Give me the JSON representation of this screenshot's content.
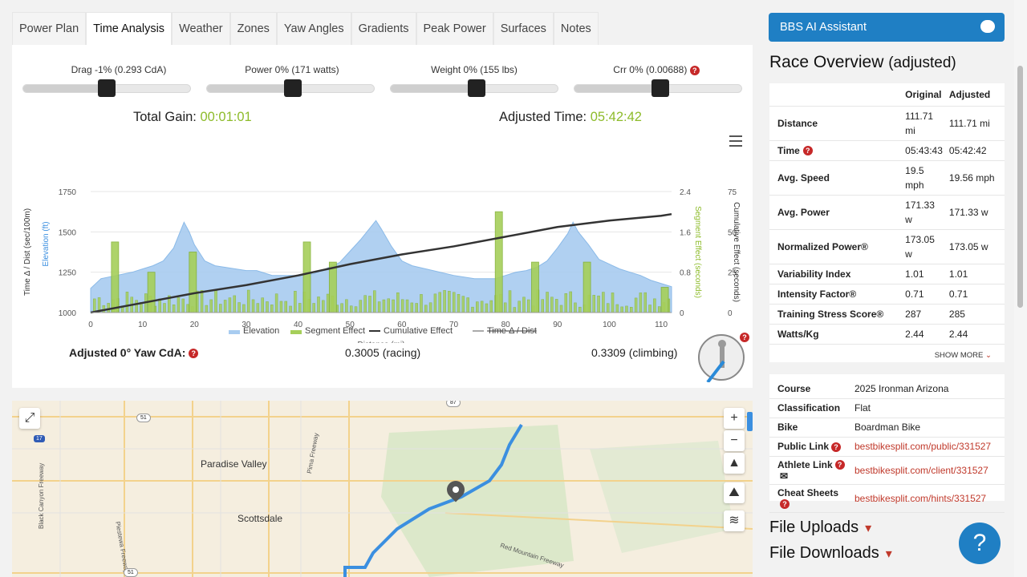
{
  "tabs": [
    "Power Plan",
    "Time Analysis",
    "Weather",
    "Zones",
    "Yaw Angles",
    "Gradients",
    "Peak Power",
    "Surfaces",
    "Notes"
  ],
  "sliders": [
    {
      "label": "Drag -1% (0.293 CdA)",
      "value": 0.5
    },
    {
      "label": "Power 0% (171 watts)",
      "value": 0.5
    },
    {
      "label": "Weight 0% (155 lbs)",
      "value": 0.5
    },
    {
      "label": "Crr 0% (0.00688)",
      "value": 0.5
    }
  ],
  "total_gain": {
    "label": "Total Gain:",
    "value": "00:01:01"
  },
  "adjusted_time": {
    "label": "Adjusted Time:",
    "value": "05:42:42"
  },
  "chart_data": {
    "type": "area",
    "xlabel": "Distance (mi)",
    "ylabel_left_outer": "Time Δ / Dist (sec/100m)",
    "ylabel_left": "Elevation (ft)",
    "ylabel_right1": "Segment Effect (seconds)",
    "ylabel_right2": "Cumulative Effect (seconds)",
    "x_ticks": [
      "0",
      "10",
      "20",
      "30",
      "40",
      "50",
      "60",
      "70",
      "80",
      "90",
      "100",
      "110"
    ],
    "y_left_ticks": [
      "1000",
      "1250",
      "1500",
      "1750"
    ],
    "y_right1_ticks": [
      "0",
      "0.8",
      "1.6",
      "2.4"
    ],
    "y_right2_ticks": [
      "0",
      "25",
      "50",
      "75"
    ],
    "xlim": [
      0,
      112
    ],
    "ylim_left": [
      1000,
      1750
    ],
    "ylim_right1": [
      0,
      2.4
    ],
    "ylim_right2": [
      0,
      75
    ],
    "elevation": {
      "x": [
        0,
        2,
        5,
        8,
        10,
        12,
        14,
        16,
        17,
        18,
        19,
        20,
        22,
        24,
        26,
        28,
        30,
        32,
        35,
        38,
        40,
        43,
        46,
        48,
        50,
        52,
        54,
        55,
        56,
        58,
        60,
        62,
        66,
        70,
        74,
        78,
        80,
        82,
        84,
        86,
        88,
        90,
        92,
        93,
        94,
        96,
        98,
        100,
        102,
        104,
        106,
        108,
        110,
        112
      ],
      "y": [
        1150,
        1210,
        1230,
        1250,
        1270,
        1290,
        1320,
        1400,
        1480,
        1560,
        1500,
        1420,
        1320,
        1290,
        1280,
        1270,
        1260,
        1260,
        1230,
        1230,
        1230,
        1240,
        1280,
        1310,
        1380,
        1450,
        1530,
        1570,
        1520,
        1410,
        1320,
        1290,
        1260,
        1230,
        1210,
        1210,
        1230,
        1250,
        1260,
        1280,
        1320,
        1400,
        1490,
        1560,
        1500,
        1420,
        1330,
        1300,
        1270,
        1250,
        1230,
        1200,
        1180,
        1160
      ]
    },
    "cumulative_effect": {
      "x": [
        0,
        10,
        20,
        30,
        40,
        50,
        60,
        70,
        80,
        90,
        100,
        110,
        112
      ],
      "y": [
        0,
        6,
        12,
        17,
        23,
        30,
        36,
        41,
        47,
        53,
        57,
        60,
        61
      ]
    },
    "segment_effect_peaks": {
      "x": [
        4,
        11,
        19,
        41,
        46,
        78,
        85,
        95,
        110
      ],
      "y": [
        1.4,
        0.8,
        1.2,
        1.4,
        1.0,
        2.0,
        1.0,
        1.0,
        0.5
      ]
    },
    "legend": [
      "Elevation",
      "Segment Effect",
      "Cumulative Effect",
      "Time Δ / Dist"
    ],
    "legend_placement": "bottom-center",
    "colors": {
      "elevation": "#a8ccf0",
      "segment": "#a6cf5a",
      "cumulative": "#333333"
    }
  },
  "cda": {
    "label": "Adjusted 0° Yaw CdA:",
    "racing": "0.3005 (racing)",
    "climbing": "0.3309 (climbing)"
  },
  "map": {
    "labels": [
      "Paradise Valley",
      "Scottsdale",
      "Pima Freeway",
      "Piestewa Freeway",
      "Black Canyon Freeway",
      "Red Mountain Freeway"
    ],
    "shields": [
      "51",
      "17",
      "51",
      "87",
      "60"
    ],
    "controls": [
      "fullscreen-icon",
      "zoom-in",
      "zoom-out",
      "compass",
      "terrain",
      "layers"
    ]
  },
  "ai_button": "BBS AI Assistant",
  "overview": {
    "title": "Race Overview",
    "subtitle": "(adjusted)",
    "col_original": "Original",
    "col_adjusted": "Adjusted",
    "rows": [
      {
        "label": "Distance",
        "original": "111.71 mi",
        "adjusted": "111.71 mi"
      },
      {
        "label": "Time",
        "original": "05:43:43",
        "adjusted": "05:42:42",
        "help": true
      },
      {
        "label": "Avg. Speed",
        "original": "19.5 mph",
        "adjusted": "19.56 mph"
      },
      {
        "label": "Avg. Power",
        "original": "171.33 w",
        "adjusted": "171.33 w"
      },
      {
        "label": "Normalized Power®",
        "original": "173.05 w",
        "adjusted": "173.05 w"
      },
      {
        "label": "Variability Index",
        "original": "1.01",
        "adjusted": "1.01"
      },
      {
        "label": "Intensity Factor®",
        "original": "0.71",
        "adjusted": "0.71"
      },
      {
        "label": "Training Stress Score®",
        "original": "287",
        "adjusted": "285"
      },
      {
        "label": "Watts/Kg",
        "original": "2.44",
        "adjusted": "2.44"
      }
    ],
    "show_more": "SHOW MORE"
  },
  "info": [
    {
      "label": "Course",
      "value": "2025 Ironman Arizona"
    },
    {
      "label": "Classification",
      "value": "Flat"
    },
    {
      "label": "Bike",
      "value": "Boardman Bike"
    },
    {
      "label": "Public Link",
      "value": "bestbikesplit.com/public/331527",
      "link": true,
      "help": true
    },
    {
      "label": "Athlete Link",
      "value": "bestbikesplit.com/client/331527",
      "link": true,
      "help": true,
      "mail": true
    },
    {
      "label": "Cheat Sheets",
      "value": "bestbikesplit.com/hints/331527",
      "link": true,
      "help": true
    }
  ],
  "file_uploads": "File Uploads",
  "file_downloads": "File Downloads",
  "help_fab": "?"
}
